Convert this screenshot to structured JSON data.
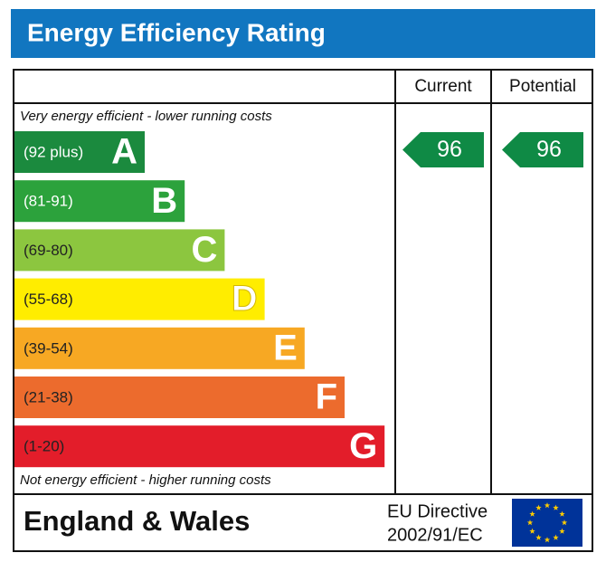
{
  "title": "Energy Efficiency Rating",
  "header": {
    "current": "Current",
    "potential": "Potential"
  },
  "top_note": "Very energy efficient - lower running costs",
  "bottom_note": "Not energy efficient - higher running costs",
  "bands": [
    {
      "range": "(92 plus)",
      "letter": "A",
      "color": "#1b8a3e",
      "text_color": "#ffffff"
    },
    {
      "range": "(81-91)",
      "letter": "B",
      "color": "#2ca23c",
      "text_color": "#ffffff"
    },
    {
      "range": "(69-80)",
      "letter": "C",
      "color": "#8cc63f",
      "text_color": "#222222"
    },
    {
      "range": "(55-68)",
      "letter": "D",
      "color": "#ffed00",
      "text_color": "#222222"
    },
    {
      "range": "(39-54)",
      "letter": "E",
      "color": "#f7a823",
      "text_color": "#222222"
    },
    {
      "range": "(21-38)",
      "letter": "F",
      "color": "#ec6b2d",
      "text_color": "#222222"
    },
    {
      "range": "(1-20)",
      "letter": "G",
      "color": "#e31d2a",
      "text_color": "#222222"
    }
  ],
  "current": {
    "value": 96,
    "color": "#0f8a45"
  },
  "potential": {
    "value": 96,
    "color": "#0f8a45"
  },
  "footer": {
    "region": "England & Wales",
    "directive": [
      "EU Directive",
      "2002/91/EC"
    ]
  }
}
